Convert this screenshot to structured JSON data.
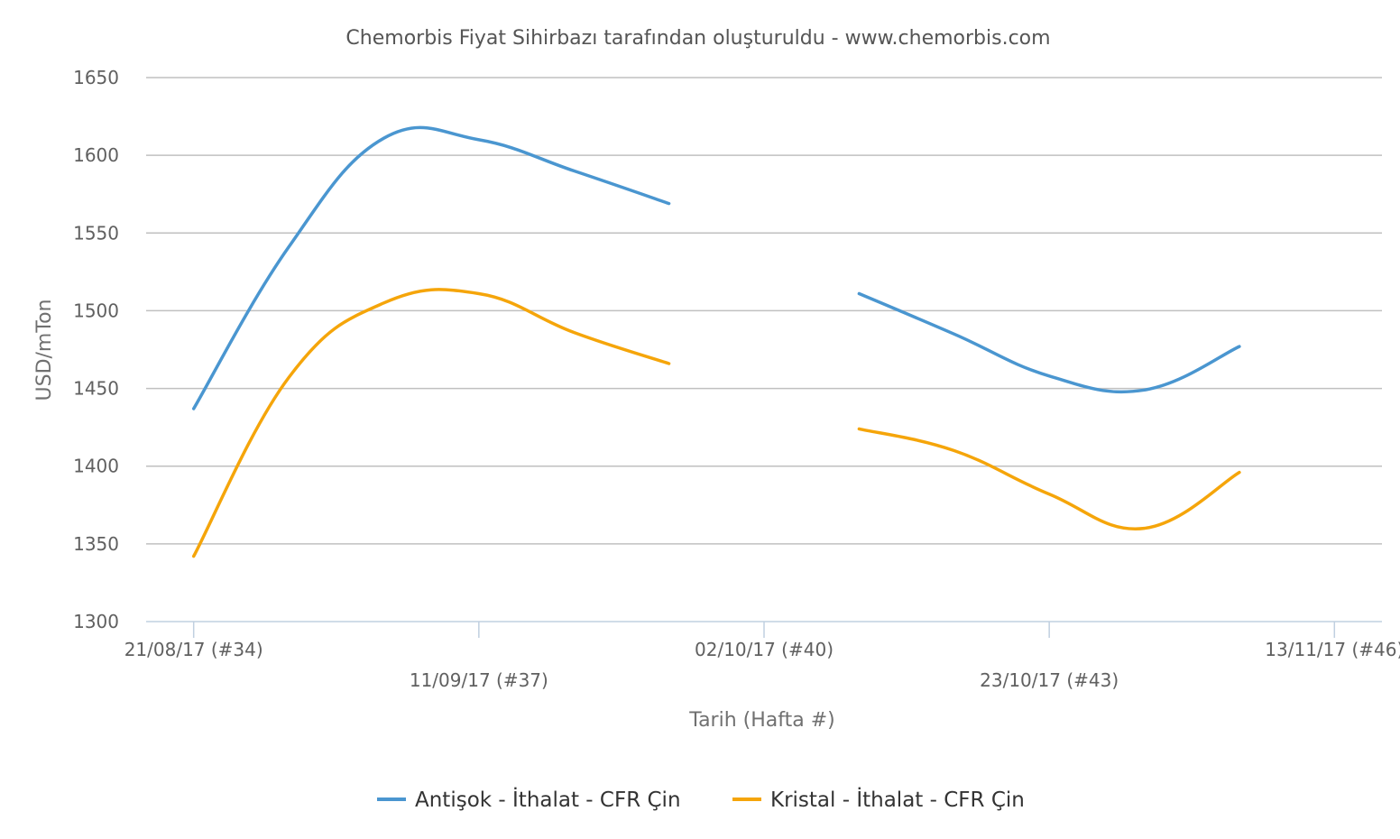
{
  "chart_data": {
    "type": "line",
    "title": "Chemorbis Fiyat Sihirbazı tarafından oluşturuldu - www.chemorbis.com",
    "xlabel": "Tarih (Hafta #)",
    "ylabel": "USD/mTon",
    "ylim": [
      1300,
      1650
    ],
    "yticks": [
      1300,
      1350,
      1400,
      1450,
      1500,
      1550,
      1600,
      1650
    ],
    "grid": true,
    "legend_position": "bottom-center",
    "x_ticks": [
      {
        "week": 34,
        "label": "21/08/17 (#34)"
      },
      {
        "week": 37,
        "label": "11/09/17 (#37)"
      },
      {
        "week": 40,
        "label": "02/10/17 (#40)"
      },
      {
        "week": 43,
        "label": "23/10/17 (#43)"
      },
      {
        "week": 46,
        "label": "13/11/17 (#46)"
      }
    ],
    "x_range": [
      33.5,
      46.5
    ],
    "x": [
      34,
      35,
      36,
      37,
      38,
      39,
      40,
      41,
      42,
      43,
      44,
      45
    ],
    "series": [
      {
        "name": "Antişok - İthalat - CFR Çin",
        "color": "#4a96d0",
        "values": [
          1437,
          1541,
          1611,
          1610,
          1590,
          1569,
          null,
          1511,
          1485,
          1458,
          1449,
          1477
        ]
      },
      {
        "name": "Kristal - İthalat - CFR Çin",
        "color": "#f5a50a",
        "values": [
          1342,
          1457,
          1505,
          1511,
          1486,
          1466,
          null,
          1424,
          1410,
          1382,
          1360,
          1396
        ]
      }
    ]
  }
}
